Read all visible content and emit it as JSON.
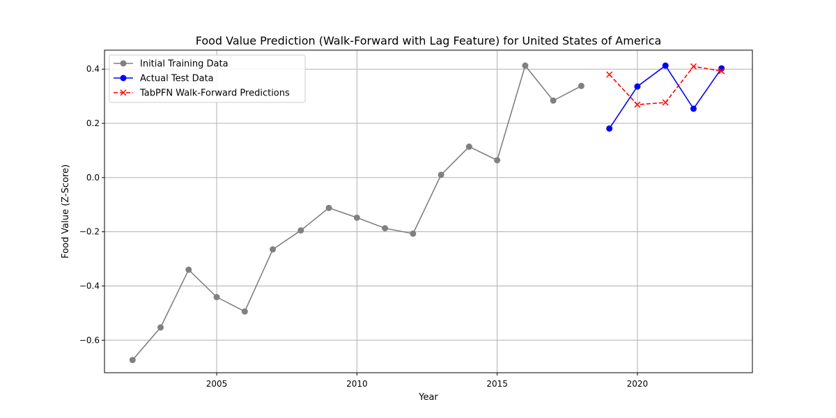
{
  "chart_data": {
    "type": "line",
    "title": "Food Value Prediction (Walk-Forward with Lag Feature) for United States of America",
    "xlabel": "Year",
    "ylabel": "Food Value (Z-Score)",
    "xlim": [
      2001,
      2024.1
    ],
    "ylim": [
      -0.72,
      0.47
    ],
    "xticks": [
      2005,
      2010,
      2015,
      2020
    ],
    "yticks": [
      -0.6,
      -0.4,
      -0.2,
      0.0,
      0.2,
      0.4
    ],
    "xtick_labels": [
      "2005",
      "2010",
      "2015",
      "2020"
    ],
    "ytick_labels": [
      "−0.6",
      "−0.4",
      "−0.2",
      "0.0",
      "0.2",
      "0.4"
    ],
    "grid": true,
    "legend_position": "upper-left",
    "series": [
      {
        "name": "Initial Training Data",
        "color": "#808080",
        "marker": "circle",
        "linestyle": "solid",
        "x": [
          2002,
          2003,
          2004,
          2005,
          2006,
          2007,
          2008,
          2009,
          2010,
          2011,
          2012,
          2013,
          2014,
          2015,
          2016,
          2017,
          2018
        ],
        "y": [
          -0.673,
          -0.553,
          -0.34,
          -0.441,
          -0.494,
          -0.265,
          -0.195,
          -0.112,
          -0.148,
          -0.187,
          -0.207,
          0.01,
          0.114,
          0.064,
          0.413,
          0.284,
          0.338
        ]
      },
      {
        "name": "Actual Test Data",
        "color": "#0000ff",
        "marker": "circle",
        "linestyle": "solid",
        "x": [
          2019,
          2020,
          2021,
          2022,
          2023
        ],
        "y": [
          0.181,
          0.336,
          0.413,
          0.254,
          0.403
        ]
      },
      {
        "name": "TabPFN Walk-Forward Predictions",
        "color": "#ff0000",
        "marker": "x",
        "linestyle": "dashed",
        "x": [
          2019,
          2020,
          2021,
          2022,
          2023
        ],
        "y": [
          0.38,
          0.269,
          0.277,
          0.41,
          0.393
        ]
      }
    ]
  }
}
